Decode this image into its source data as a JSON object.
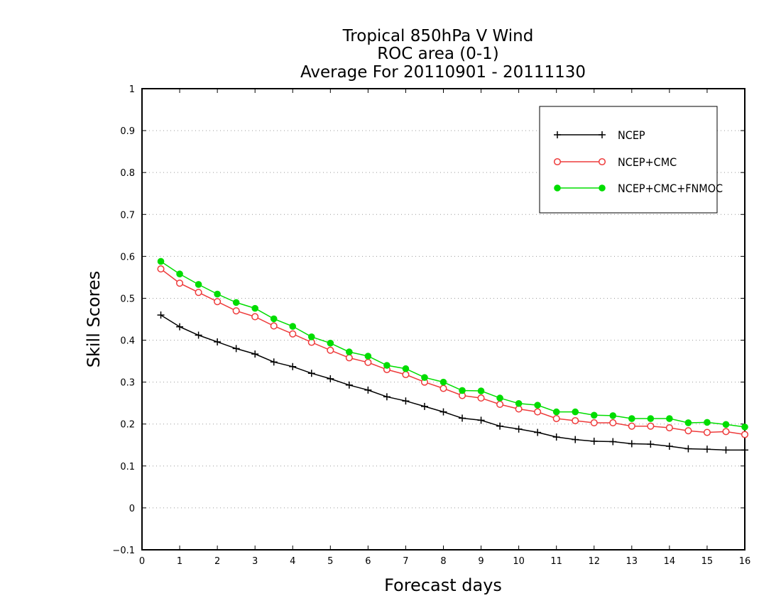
{
  "chart_data": {
    "type": "line",
    "title": [
      "Tropical 850hPa V Wind",
      "ROC area (0-1)",
      "Average For 20110901 - 20111130"
    ],
    "xlabel": "Forecast days",
    "ylabel": "Skill Scores",
    "xlim": [
      0,
      16
    ],
    "ylim": [
      -0.1,
      1
    ],
    "xticks": [
      "0",
      "1",
      "2",
      "3",
      "4",
      "5",
      "6",
      "7",
      "8",
      "9",
      "10",
      "11",
      "12",
      "13",
      "14",
      "15",
      "16"
    ],
    "yticks": [
      "-0.1",
      "0",
      "0.1",
      "0.2",
      "0.3",
      "0.4",
      "0.5",
      "0.6",
      "0.7",
      "0.8",
      "0.9",
      "1"
    ],
    "grid": "horizontal dotted",
    "legend_position": "top-right",
    "x": [
      0.5,
      1,
      1.5,
      2,
      2.5,
      3,
      3.5,
      4,
      4.5,
      5,
      5.5,
      6,
      6.5,
      7,
      7.5,
      8,
      8.5,
      9,
      9.5,
      10,
      10.5,
      11,
      11.5,
      12,
      12.5,
      13,
      13.5,
      14,
      14.5,
      15,
      15.5,
      16
    ],
    "series": [
      {
        "name": "NCEP",
        "color": "#000000",
        "marker": "plus",
        "values": [
          0.46,
          0.432,
          0.412,
          0.396,
          0.38,
          0.367,
          0.348,
          0.337,
          0.321,
          0.308,
          0.293,
          0.281,
          0.265,
          0.255,
          0.242,
          0.229,
          0.214,
          0.209,
          0.195,
          0.188,
          0.18,
          0.169,
          0.163,
          0.159,
          0.158,
          0.153,
          0.152,
          0.147,
          0.141,
          0.14,
          0.138,
          0.138
        ]
      },
      {
        "name": "NCEP+CMC",
        "color": "#ee3b3b",
        "marker": "open-circle",
        "values": [
          0.57,
          0.536,
          0.514,
          0.492,
          0.47,
          0.456,
          0.434,
          0.415,
          0.395,
          0.376,
          0.358,
          0.347,
          0.33,
          0.318,
          0.3,
          0.285,
          0.268,
          0.262,
          0.247,
          0.236,
          0.229,
          0.213,
          0.208,
          0.203,
          0.203,
          0.195,
          0.195,
          0.191,
          0.184,
          0.18,
          0.182,
          0.175
        ]
      },
      {
        "name": "NCEP+CMC+FNMOC",
        "color": "#00dd00",
        "marker": "filled-circle",
        "values": [
          0.588,
          0.558,
          0.533,
          0.51,
          0.49,
          0.476,
          0.451,
          0.433,
          0.408,
          0.393,
          0.372,
          0.362,
          0.34,
          0.332,
          0.311,
          0.3,
          0.28,
          0.279,
          0.262,
          0.249,
          0.245,
          0.229,
          0.229,
          0.221,
          0.22,
          0.213,
          0.213,
          0.213,
          0.203,
          0.204,
          0.199,
          0.193
        ]
      }
    ]
  }
}
